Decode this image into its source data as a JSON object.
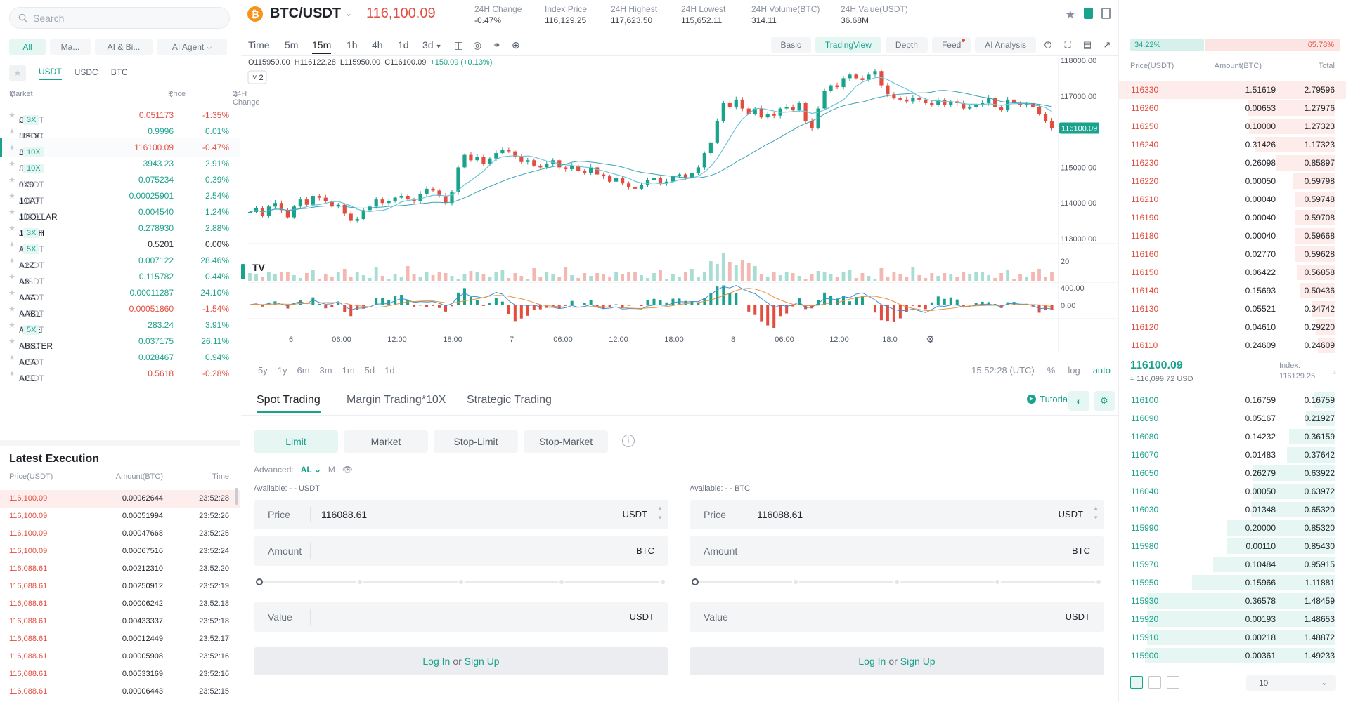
{
  "search": {
    "placeholder": "Search"
  },
  "categories": [
    "All",
    "Ma...",
    "AI & Bi...",
    "AI Agent"
  ],
  "quote_tabs": [
    "USDT",
    "USDC",
    "BTC"
  ],
  "market_header": {
    "market": "Market",
    "price": "Price",
    "change": "24H Change"
  },
  "markets": [
    {
      "base": "CET",
      "quote": "/USDT",
      "lev": "3X",
      "price": "0.051173",
      "change": "-1.35%",
      "dir": "down"
    },
    {
      "base": "USDC",
      "quote": "/USDT",
      "lev": "",
      "price": "0.9996",
      "change": "0.01%",
      "dir": "up"
    },
    {
      "base": "BTC",
      "quote": "/USDT",
      "lev": "10X",
      "price": "116100.09",
      "change": "-0.47%",
      "dir": "down"
    },
    {
      "base": "ETH",
      "quote": "/USDT",
      "lev": "10X",
      "price": "3943.23",
      "change": "2.91%",
      "dir": "up"
    },
    {
      "base": "0X0",
      "quote": "/USDT",
      "lev": "",
      "price": "0.075234",
      "change": "0.39%",
      "dir": "up"
    },
    {
      "base": "1CAT",
      "quote": "/USDT",
      "lev": "",
      "price": "0.00025901",
      "change": "2.54%",
      "dir": "up"
    },
    {
      "base": "1DOLLAR",
      "quote": "/USDT",
      "lev": "",
      "price": "0.004540",
      "change": "1.24%",
      "dir": "up"
    },
    {
      "base": "1INCH",
      "quote": "/USDT",
      "lev": "3X",
      "price": "0.278930",
      "change": "2.88%",
      "dir": "up"
    },
    {
      "base": "A",
      "quote": "/USDT",
      "lev": "5X",
      "price": "0.5201",
      "change": "0.00%",
      "dir": "flat"
    },
    {
      "base": "A2Z",
      "quote": "/USDT",
      "lev": "",
      "price": "0.007122",
      "change": "28.46%",
      "dir": "up"
    },
    {
      "base": "A8",
      "quote": "/USDT",
      "lev": "",
      "price": "0.115782",
      "change": "0.44%",
      "dir": "up"
    },
    {
      "base": "AAA",
      "quote": "/USDT",
      "lev": "",
      "price": "0.00011287",
      "change": "24.10%",
      "dir": "up"
    },
    {
      "base": "AABL",
      "quote": "/USDT",
      "lev": "",
      "price": "0.00051860",
      "change": "-1.54%",
      "dir": "down"
    },
    {
      "base": "AAVE",
      "quote": "/USDT",
      "lev": "5X",
      "price": "283.24",
      "change": "3.91%",
      "dir": "up"
    },
    {
      "base": "ABSTER",
      "quote": "/USDT",
      "lev": "",
      "price": "0.037175",
      "change": "26.11%",
      "dir": "up"
    },
    {
      "base": "ACA",
      "quote": "/USDT",
      "lev": "",
      "price": "0.028467",
      "change": "0.94%",
      "dir": "up"
    },
    {
      "base": "ACE",
      "quote": "/USDT",
      "lev": "",
      "price": "0.5618",
      "change": "-0.28%",
      "dir": "down"
    }
  ],
  "latest_execution": {
    "title": "Latest Execution",
    "headers": {
      "price": "Price(USDT)",
      "amount": "Amount(BTC)",
      "time": "Time"
    },
    "rows": [
      {
        "price": "116,100.09",
        "amount": "0.00062644",
        "time": "23:52:28"
      },
      {
        "price": "116,100.09",
        "amount": "0.00051994",
        "time": "23:52:26"
      },
      {
        "price": "116,100.09",
        "amount": "0.00047668",
        "time": "23:52:25"
      },
      {
        "price": "116,100.09",
        "amount": "0.00067516",
        "time": "23:52:24"
      },
      {
        "price": "116,088.61",
        "amount": "0.00212310",
        "time": "23:52:20"
      },
      {
        "price": "116,088.61",
        "amount": "0.00250912",
        "time": "23:52:19"
      },
      {
        "price": "116,088.61",
        "amount": "0.00006242",
        "time": "23:52:18"
      },
      {
        "price": "116,088.61",
        "amount": "0.00433337",
        "time": "23:52:18"
      },
      {
        "price": "116,088.61",
        "amount": "0.00012449",
        "time": "23:52:17"
      },
      {
        "price": "116,088.61",
        "amount": "0.00005908",
        "time": "23:52:16"
      },
      {
        "price": "116,088.61",
        "amount": "0.00533169",
        "time": "23:52:16"
      },
      {
        "price": "116,088.61",
        "amount": "0.00006443",
        "time": "23:52:15"
      }
    ]
  },
  "ticker": {
    "symbol": "BTC/USDT",
    "coin_glyph": "₿",
    "last_price": "116,100.09",
    "stats": [
      {
        "label": "24H Change",
        "value": "-0.47%",
        "dir": "down"
      },
      {
        "label": "Index Price",
        "value": "116,129.25",
        "dir": ""
      },
      {
        "label": "24H Highest",
        "value": "117,623.50",
        "dir": ""
      },
      {
        "label": "24H Lowest",
        "value": "115,652.11",
        "dir": ""
      },
      {
        "label": "24H Volume(BTC)",
        "value": "314.11",
        "dir": ""
      },
      {
        "label": "24H Value(USDT)",
        "value": "36.68M",
        "dir": ""
      }
    ]
  },
  "intervals": [
    "Time",
    "5m",
    "15m",
    "1h",
    "4h",
    "1d",
    "3d"
  ],
  "active_interval": "15m",
  "chart_views": [
    "Basic",
    "TradingView",
    "Depth",
    "Feed",
    "AI Analysis"
  ],
  "active_view": "TradingView",
  "ohlc": {
    "o": "O115950.00",
    "h": "H116122.28",
    "l": "L115950.00",
    "c": "C116100.09",
    "chg": "+150.09 (+0.13%)"
  },
  "indicator_count": "2",
  "price_axis": [
    "118000.00",
    "117000.00",
    "115000.00",
    "114000.00",
    "113000.00"
  ],
  "price_label": "116100.09",
  "volume_axis": "20",
  "macd_axis": [
    "400.00",
    "0.00"
  ],
  "time_axis": [
    "6",
    "06:00",
    "12:00",
    "18:00",
    "7",
    "06:00",
    "12:00",
    "18:00",
    "8",
    "06:00",
    "12:00",
    "18:0"
  ],
  "ranges": [
    "5y",
    "1y",
    "6m",
    "3m",
    "1m",
    "5d",
    "1d"
  ],
  "chart_footer": {
    "time": "15:52:28 (UTC)",
    "pct": "%",
    "log": "log",
    "auto": "auto"
  },
  "trade_tabs": [
    "Spot Trading",
    "Margin Trading*10X",
    "Strategic Trading"
  ],
  "tutorial": "Tutorial",
  "order_types": [
    "Limit",
    "Market",
    "Stop-Limit",
    "Stop-Market"
  ],
  "advanced": {
    "label": "Advanced:",
    "al": "AL",
    "m": "M"
  },
  "buy_form": {
    "available": "Available: - - USDT",
    "price_label": "Price",
    "price_value": "116088.61",
    "price_unit": "USDT",
    "amount_label": "Amount",
    "amount_unit": "BTC",
    "value_label": "Value",
    "value_unit": "USDT"
  },
  "sell_form": {
    "available": "Available: - - BTC",
    "price_label": "Price",
    "price_value": "116088.61",
    "price_unit": "USDT",
    "amount_label": "Amount",
    "amount_unit": "BTC",
    "value_label": "Value",
    "value_unit": "USDT"
  },
  "login": {
    "login": "Log In",
    "or": "or",
    "signup": "Sign Up"
  },
  "orderbook": {
    "buy_ratio": "34.22%",
    "sell_ratio": "65.78%",
    "headers": {
      "price": "Price(USDT)",
      "amount": "Amount(BTC)",
      "total": "Total"
    },
    "asks": [
      {
        "price": "116330",
        "amount": "1.51619",
        "total": "2.79596",
        "depth": 1.0
      },
      {
        "price": "116260",
        "amount": "0.00653",
        "total": "1.27976",
        "depth": 0.46
      },
      {
        "price": "116250",
        "amount": "0.10000",
        "total": "1.27323",
        "depth": 0.45
      },
      {
        "price": "116240",
        "amount": "0.31426",
        "total": "1.17323",
        "depth": 0.42
      },
      {
        "price": "116230",
        "amount": "0.26098",
        "total": "0.85897",
        "depth": 0.31
      },
      {
        "price": "116220",
        "amount": "0.00050",
        "total": "0.59798",
        "depth": 0.22
      },
      {
        "price": "116210",
        "amount": "0.00040",
        "total": "0.59748",
        "depth": 0.21
      },
      {
        "price": "116190",
        "amount": "0.00040",
        "total": "0.59708",
        "depth": 0.21
      },
      {
        "price": "116180",
        "amount": "0.00040",
        "total": "0.59668",
        "depth": 0.21
      },
      {
        "price": "116160",
        "amount": "0.02770",
        "total": "0.59628",
        "depth": 0.21
      },
      {
        "price": "116150",
        "amount": "0.06422",
        "total": "0.56858",
        "depth": 0.2
      },
      {
        "price": "116140",
        "amount": "0.15693",
        "total": "0.50436",
        "depth": 0.18
      },
      {
        "price": "116130",
        "amount": "0.05521",
        "total": "0.34742",
        "depth": 0.12
      },
      {
        "price": "116120",
        "amount": "0.04610",
        "total": "0.29220",
        "depth": 0.1
      },
      {
        "price": "116110",
        "amount": "0.24609",
        "total": "0.24609",
        "depth": 0.09
      }
    ],
    "mid_price": "116100.09",
    "mid_usd": "≈ 116,099.72  USD",
    "index_label": "Index:",
    "index_value": "116129.25",
    "bids": [
      {
        "price": "116100",
        "amount": "0.16759",
        "total": "0.16759",
        "depth": 0.11
      },
      {
        "price": "116090",
        "amount": "0.05167",
        "total": "0.21927",
        "depth": 0.15
      },
      {
        "price": "116080",
        "amount": "0.14232",
        "total": "0.36159",
        "depth": 0.24
      },
      {
        "price": "116070",
        "amount": "0.01483",
        "total": "0.37642",
        "depth": 0.25
      },
      {
        "price": "116050",
        "amount": "0.26279",
        "total": "0.63922",
        "depth": 0.43
      },
      {
        "price": "116040",
        "amount": "0.00050",
        "total": "0.63972",
        "depth": 0.43
      },
      {
        "price": "116030",
        "amount": "0.01348",
        "total": "0.65320",
        "depth": 0.44
      },
      {
        "price": "115990",
        "amount": "0.20000",
        "total": "0.85320",
        "depth": 0.57
      },
      {
        "price": "115980",
        "amount": "0.00110",
        "total": "0.85430",
        "depth": 0.57
      },
      {
        "price": "115970",
        "amount": "0.10484",
        "total": "0.95915",
        "depth": 0.64
      },
      {
        "price": "115950",
        "amount": "0.15966",
        "total": "1.11881",
        "depth": 0.75
      },
      {
        "price": "115930",
        "amount": "0.36578",
        "total": "1.48459",
        "depth": 0.99
      },
      {
        "price": "115920",
        "amount": "0.00193",
        "total": "1.48653",
        "depth": 0.99
      },
      {
        "price": "115910",
        "amount": "0.00218",
        "total": "1.48872",
        "depth": 0.99
      },
      {
        "price": "115900",
        "amount": "0.00361",
        "total": "1.49233",
        "depth": 1.0
      }
    ],
    "depth_select": "10"
  },
  "colors": {
    "up": "#19a28c",
    "down": "#e24d3f",
    "ma": "#6cc5d8",
    "macd_dif": "#3d8fd6",
    "macd_dea": "#e8913a"
  },
  "chart_data": {
    "type": "candlestick",
    "symbol": "BTC/USDT",
    "interval": "15m",
    "ylim": [
      113000,
      118000
    ],
    "price_ticks": [
      118000,
      117000,
      115000,
      114000,
      113000
    ],
    "closes": [
      113750,
      113850,
      113650,
      113900,
      114000,
      113800,
      113600,
      113900,
      114100,
      113950,
      114200,
      114150,
      114050,
      113900,
      113950,
      113700,
      113500,
      113550,
      113800,
      113900,
      114100,
      114000,
      114050,
      114150,
      114200,
      114100,
      114050,
      114250,
      114400,
      114350,
      114200,
      114000,
      114300,
      115000,
      115350,
      115200,
      115300,
      115100,
      115250,
      115400,
      115500,
      115450,
      115300,
      115150,
      115200,
      115050,
      115000,
      115100,
      115200,
      115000,
      114950,
      115050,
      114900,
      114850,
      115000,
      114800,
      114750,
      114600,
      114700,
      114550,
      114450,
      114400,
      114500,
      114650,
      114700,
      114550,
      114600,
      114750,
      114800,
      114700,
      114850,
      115000,
      115400,
      115700,
      116300,
      116800,
      116700,
      116900,
      116650,
      116500,
      116650,
      116400,
      116500,
      116450,
      116650,
      116700,
      116600,
      116800,
      116300,
      116100,
      116650,
      117150,
      117300,
      117250,
      117500,
      117600,
      117500,
      117450,
      117600,
      117700,
      117300,
      117050,
      116950,
      116900,
      116850,
      116950,
      116900,
      116800,
      116750,
      116900,
      116750,
      116850,
      116800,
      116650,
      116700,
      116750,
      116800,
      116950,
      116700,
      116600,
      116900,
      116800,
      116750,
      116800,
      116700,
      116500,
      116300,
      116100
    ],
    "volume_note": "volume bars",
    "macd_note": "MACD indicator"
  }
}
